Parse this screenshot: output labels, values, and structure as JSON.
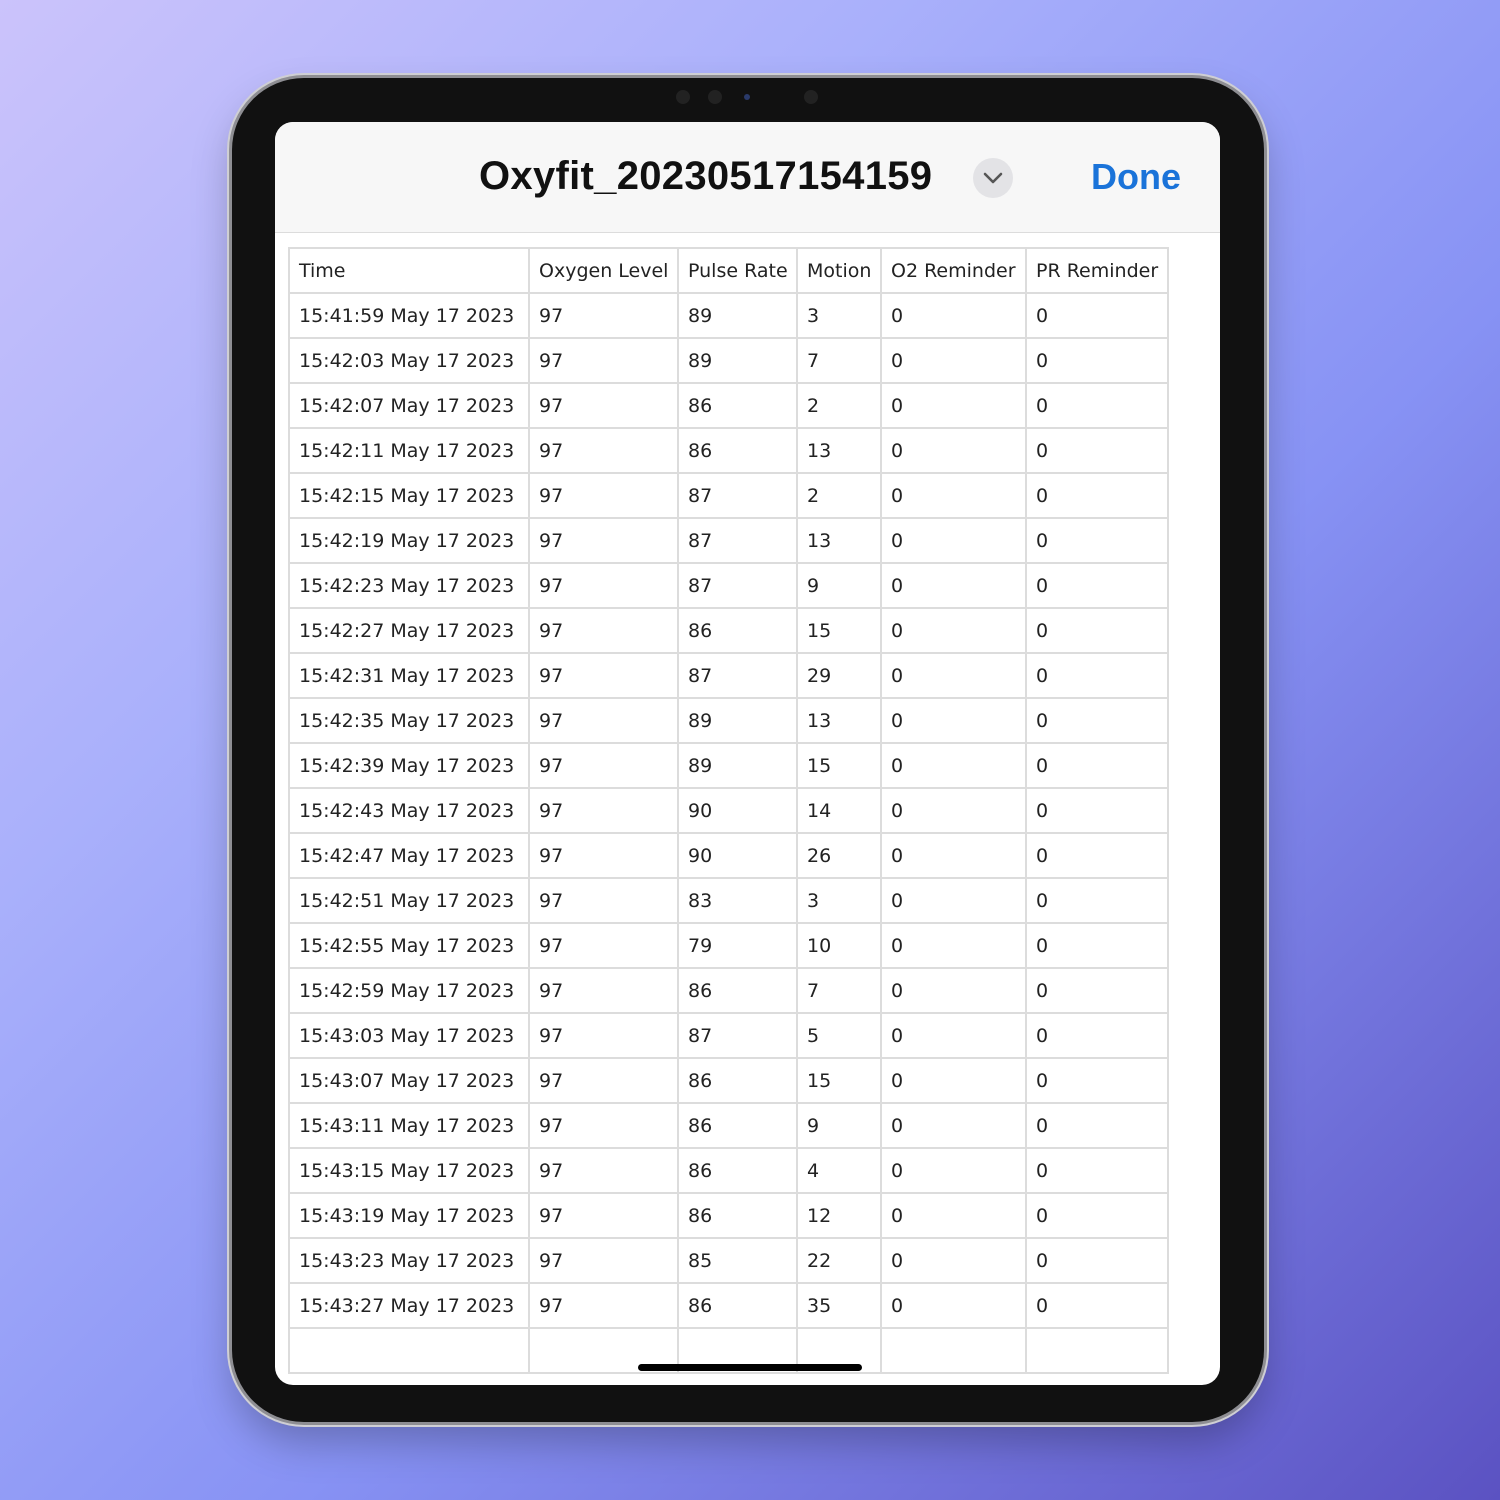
{
  "header": {
    "title": "Oxyfit_20230517154159",
    "done_label": "Done",
    "accent": "#1a73d9"
  },
  "table": {
    "columns": [
      "Time",
      "Oxygen Level",
      "Pulse Rate",
      "Motion",
      "O2 Reminder",
      "PR Reminder"
    ],
    "rows": [
      [
        "15:41:59 May 17 2023",
        "97",
        "89",
        "3",
        "0",
        "0"
      ],
      [
        "15:42:03 May 17 2023",
        "97",
        "89",
        "7",
        "0",
        "0"
      ],
      [
        "15:42:07 May 17 2023",
        "97",
        "86",
        "2",
        "0",
        "0"
      ],
      [
        "15:42:11 May 17 2023",
        "97",
        "86",
        "13",
        "0",
        "0"
      ],
      [
        "15:42:15 May 17 2023",
        "97",
        "87",
        "2",
        "0",
        "0"
      ],
      [
        "15:42:19 May 17 2023",
        "97",
        "87",
        "13",
        "0",
        "0"
      ],
      [
        "15:42:23 May 17 2023",
        "97",
        "87",
        "9",
        "0",
        "0"
      ],
      [
        "15:42:27 May 17 2023",
        "97",
        "86",
        "15",
        "0",
        "0"
      ],
      [
        "15:42:31 May 17 2023",
        "97",
        "87",
        "29",
        "0",
        "0"
      ],
      [
        "15:42:35 May 17 2023",
        "97",
        "89",
        "13",
        "0",
        "0"
      ],
      [
        "15:42:39 May 17 2023",
        "97",
        "89",
        "15",
        "0",
        "0"
      ],
      [
        "15:42:43 May 17 2023",
        "97",
        "90",
        "14",
        "0",
        "0"
      ],
      [
        "15:42:47 May 17 2023",
        "97",
        "90",
        "26",
        "0",
        "0"
      ],
      [
        "15:42:51 May 17 2023",
        "97",
        "83",
        "3",
        "0",
        "0"
      ],
      [
        "15:42:55 May 17 2023",
        "97",
        "79",
        "10",
        "0",
        "0"
      ],
      [
        "15:42:59 May 17 2023",
        "97",
        "86",
        "7",
        "0",
        "0"
      ],
      [
        "15:43:03 May 17 2023",
        "97",
        "87",
        "5",
        "0",
        "0"
      ],
      [
        "15:43:07 May 17 2023",
        "97",
        "86",
        "15",
        "0",
        "0"
      ],
      [
        "15:43:11 May 17 2023",
        "97",
        "86",
        "9",
        "0",
        "0"
      ],
      [
        "15:43:15 May 17 2023",
        "97",
        "86",
        "4",
        "0",
        "0"
      ],
      [
        "15:43:19 May 17 2023",
        "97",
        "86",
        "12",
        "0",
        "0"
      ],
      [
        "15:43:23 May 17 2023",
        "97",
        "85",
        "22",
        "0",
        "0"
      ],
      [
        "15:43:27 May 17 2023",
        "97",
        "86",
        "35",
        "0",
        "0"
      ]
    ]
  }
}
